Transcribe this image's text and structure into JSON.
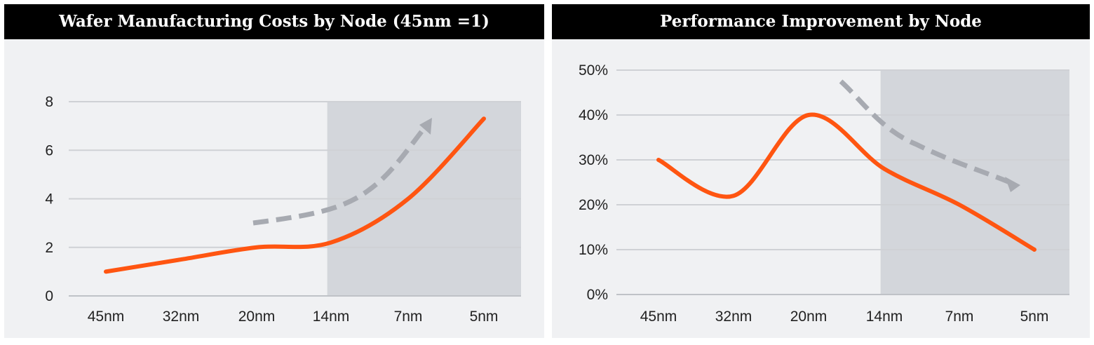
{
  "chart_data": [
    {
      "type": "line",
      "title": "Wafer Manufacturing Costs by Node (45nm =1)",
      "categories": [
        "45nm",
        "32nm",
        "20nm",
        "14nm",
        "7nm",
        "5nm"
      ],
      "series": [
        {
          "values": [
            1.0,
            1.5,
            2.0,
            2.2,
            4.0,
            7.3
          ]
        }
      ],
      "ylim": [
        0,
        8
      ],
      "yticks": [
        0,
        2,
        4,
        6,
        8
      ],
      "ytick_labels": [
        "0",
        "2",
        "4",
        "6",
        "8"
      ],
      "grid": true,
      "shaded_region": [
        "14nm",
        "5nm"
      ],
      "trend_arrow": "up",
      "colors": {
        "line": "#ff5511",
        "shade": "#d3d6db",
        "arrow": "#a7aab1",
        "grid": "#cfd1d5"
      }
    },
    {
      "type": "line",
      "title": "Performance Improvement by Node",
      "categories": [
        "45nm",
        "32nm",
        "20nm",
        "14nm",
        "7nm",
        "5nm"
      ],
      "series": [
        {
          "values": [
            30,
            22,
            40,
            28,
            20,
            10
          ]
        }
      ],
      "ylim": [
        0,
        50
      ],
      "yticks": [
        0,
        10,
        20,
        30,
        40,
        50
      ],
      "ytick_labels": [
        "0%",
        "10%",
        "20%",
        "30%",
        "40%",
        "50%"
      ],
      "grid": true,
      "shaded_region": [
        "14nm",
        "5nm"
      ],
      "trend_arrow": "down",
      "colors": {
        "line": "#ff5511",
        "shade": "#d3d6db",
        "arrow": "#a7aab1",
        "grid": "#cfd1d5"
      }
    }
  ]
}
